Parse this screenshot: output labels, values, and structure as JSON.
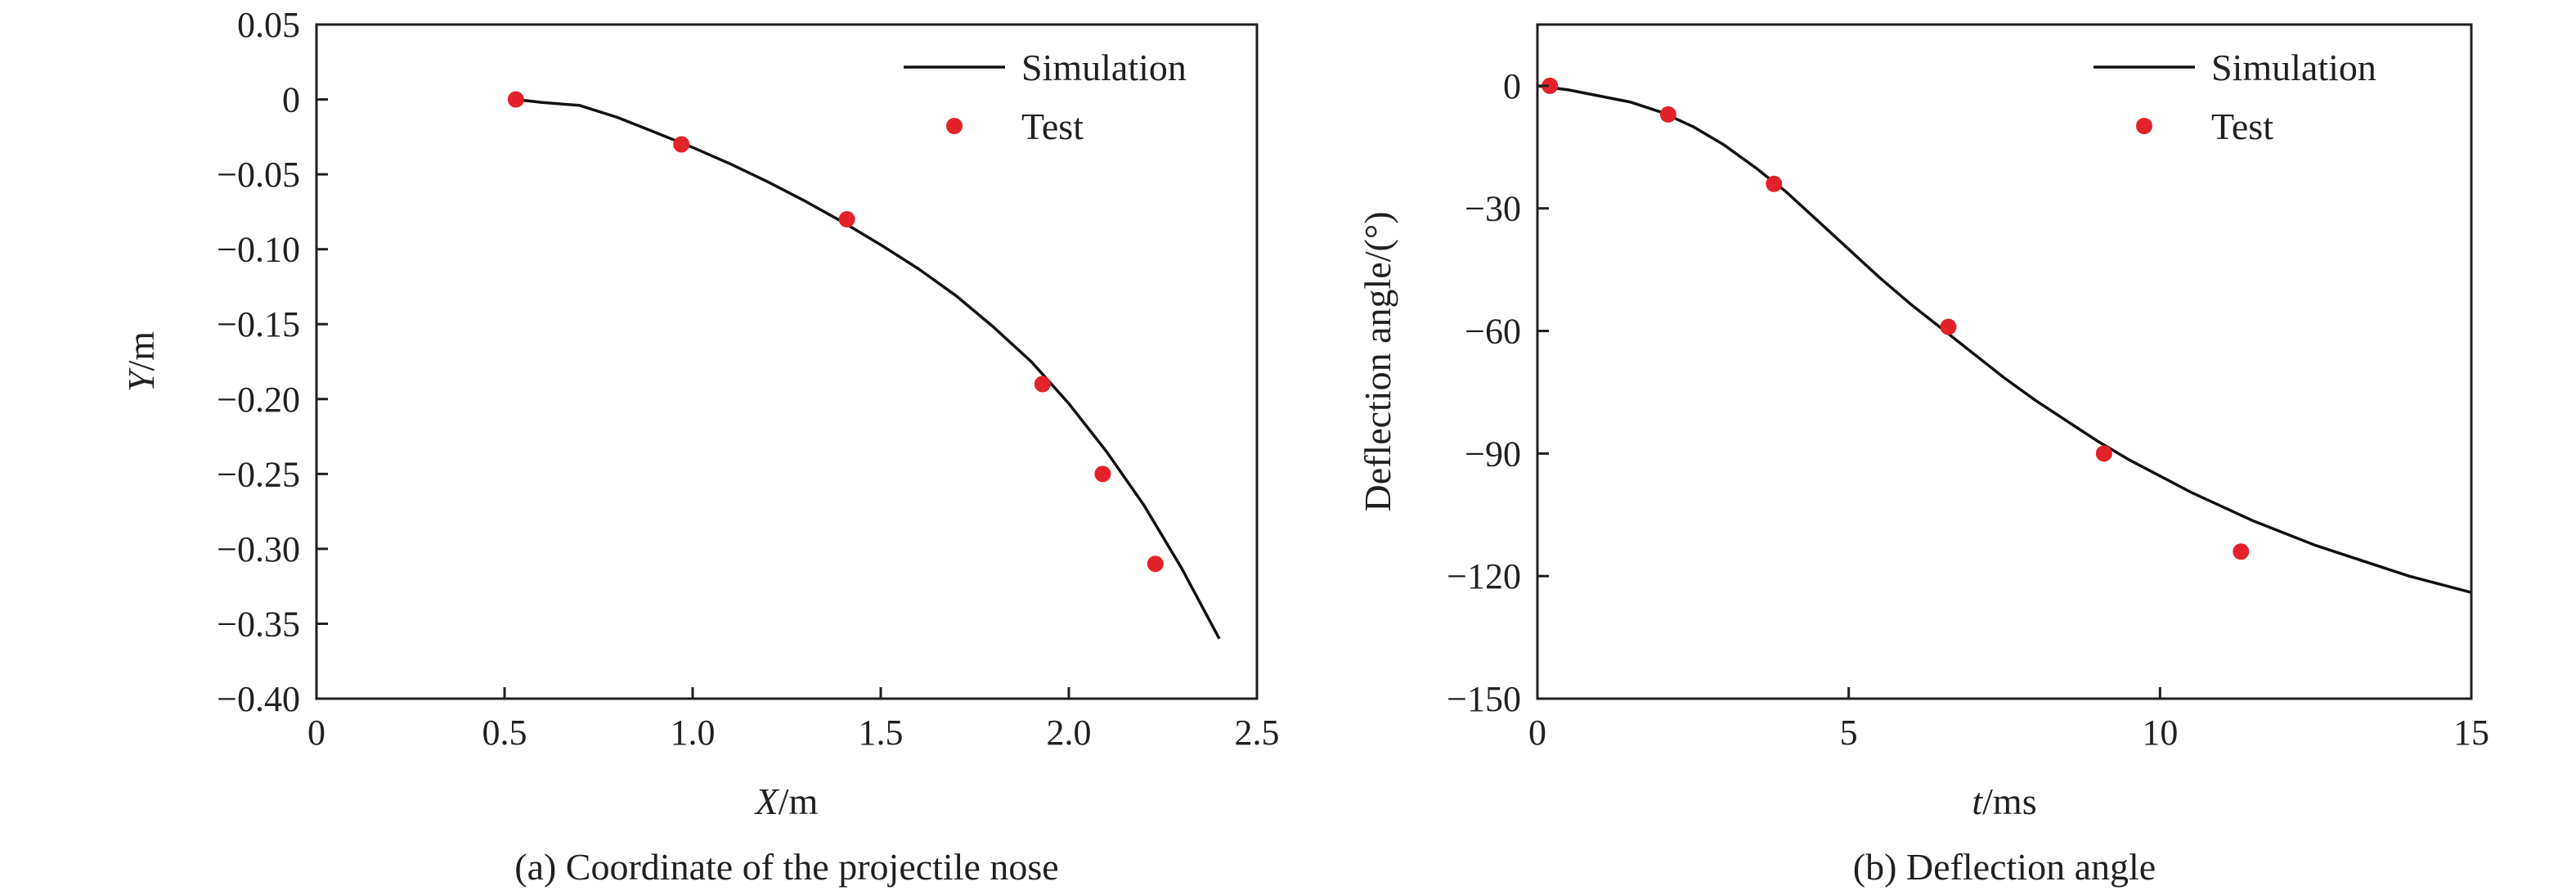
{
  "colors": {
    "test_marker": "#e3212a",
    "simulation_line": "#111111",
    "axis": "#231f20"
  },
  "chart_data": [
    {
      "type": "line",
      "caption": "(a) Coordinate of the projectile nose",
      "xlabel_italic": "X",
      "xlabel_unit": "/m",
      "ylabel_italic": "Y",
      "ylabel_unit": "/m",
      "xlim": [
        0,
        2.5
      ],
      "ylim": [
        -0.4,
        0.05
      ],
      "xticks": [
        0,
        0.5,
        1.0,
        1.5,
        2.0,
        2.5
      ],
      "xtick_labels": [
        "0",
        "0.5",
        "1.0",
        "1.5",
        "2.0",
        "2.5"
      ],
      "yticks": [
        0.05,
        0,
        -0.05,
        -0.1,
        -0.15,
        -0.2,
        -0.25,
        -0.3,
        -0.35,
        -0.4
      ],
      "ytick_labels": [
        "0.05",
        "0",
        "−0.05",
        "−0.10",
        "−0.15",
        "−0.20",
        "−0.25",
        "−0.30",
        "−0.35",
        "−0.40"
      ],
      "grid": false,
      "legend_position": "top-right",
      "series": [
        {
          "name": "Simulation",
          "style": "line",
          "x": [
            0.53,
            0.6,
            0.7,
            0.8,
            0.9,
            1.0,
            1.1,
            1.2,
            1.3,
            1.4,
            1.5,
            1.6,
            1.7,
            1.8,
            1.9,
            2.0,
            2.1,
            2.2,
            2.3,
            2.4
          ],
          "y": [
            0.0,
            -0.002,
            -0.004,
            -0.012,
            -0.022,
            -0.032,
            -0.043,
            -0.055,
            -0.068,
            -0.082,
            -0.097,
            -0.113,
            -0.131,
            -0.152,
            -0.175,
            -0.203,
            -0.235,
            -0.271,
            -0.313,
            -0.36
          ]
        },
        {
          "name": "Test",
          "style": "marker",
          "x": [
            0.53,
            0.97,
            1.41,
            1.93,
            2.09,
            2.23
          ],
          "y": [
            0.0,
            -0.03,
            -0.08,
            -0.19,
            -0.25,
            -0.31
          ]
        }
      ]
    },
    {
      "type": "line",
      "caption": "(b) Deflection angle",
      "xlabel_italic": "t",
      "xlabel_unit": "/ms",
      "ylabel": "Deflection angle/(°)",
      "xlim": [
        0,
        15
      ],
      "ylim": [
        -150,
        15
      ],
      "xticks": [
        0,
        5,
        10,
        15
      ],
      "xtick_labels": [
        "0",
        "5",
        "10",
        "15"
      ],
      "yticks": [
        0,
        -30,
        -60,
        -90,
        -120,
        -150
      ],
      "ytick_labels": [
        "0",
        "−30",
        "−60",
        "−90",
        "−120",
        "−150"
      ],
      "grid": false,
      "legend_position": "top-right",
      "series": [
        {
          "name": "Simulation",
          "style": "line",
          "x": [
            0,
            0.5,
            1,
            1.5,
            2,
            2.5,
            3,
            3.5,
            4,
            4.5,
            5,
            5.5,
            6,
            6.5,
            7,
            7.5,
            8,
            8.5,
            9,
            9.5,
            10,
            10.5,
            11,
            11.5,
            12,
            12.5,
            13,
            13.5,
            14,
            14.5,
            15
          ],
          "y": [
            0,
            -1,
            -2.5,
            -4,
            -6.5,
            -10,
            -14.5,
            -20,
            -26,
            -33,
            -40,
            -47,
            -53.5,
            -59.5,
            -65.5,
            -71.5,
            -77,
            -82,
            -87,
            -91.5,
            -95.5,
            -99.5,
            -103,
            -106.5,
            -109.5,
            -112.5,
            -115,
            -117.5,
            -120,
            -122,
            -124
          ]
        },
        {
          "name": "Test",
          "style": "marker",
          "x": [
            0.2,
            2.1,
            3.8,
            6.6,
            9.1,
            11.3
          ],
          "y": [
            0,
            -7,
            -24,
            -59,
            -90,
            -114
          ]
        }
      ]
    }
  ]
}
